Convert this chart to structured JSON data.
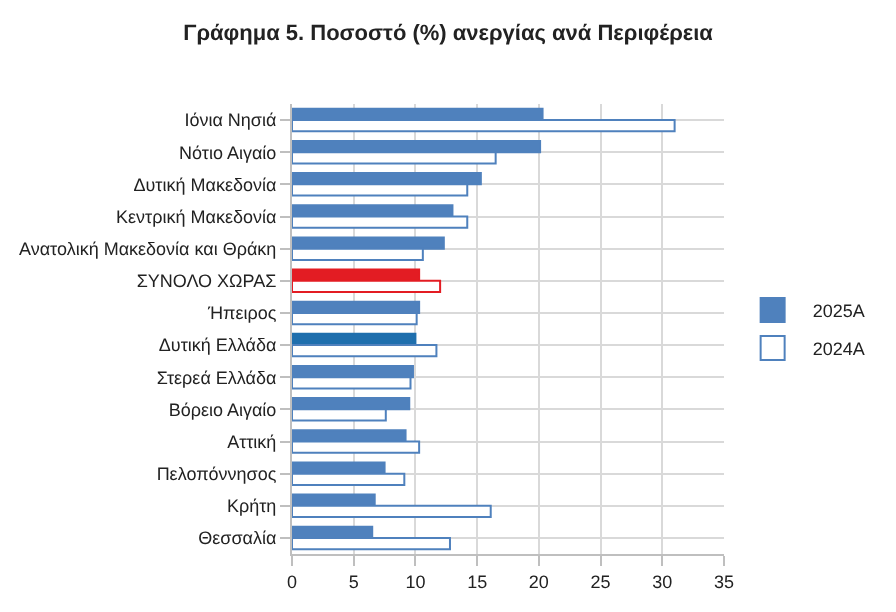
{
  "chart_data": {
    "type": "bar",
    "orientation": "horizontal",
    "title": "Γράφημα 5. Ποσοστό (%) ανεργίας ανά Περιφέρεια",
    "categories": [
      "Ιόνια Νησιά",
      "Νότιο Αιγαίο",
      "Δυτική Μακεδονία",
      "Κεντρική Μακεδονία",
      "Ανατολική Μακεδονία και Θράκη",
      "ΣΥΝΟΛΟ ΧΩΡΑΣ",
      "Ήπειρος",
      "Δυτική Ελλάδα",
      "Στερεά Ελλάδα",
      "Βόρειο Αιγαίο",
      "Αττική",
      "Πελοπόννησος",
      "Κρήτη",
      "Θεσσαλία"
    ],
    "series": [
      {
        "name": "2025A",
        "color": "#4f81bd",
        "colors": [
          "#4f81bd",
          "#4f81bd",
          "#4f81bd",
          "#4f81bd",
          "#4f81bd",
          "#e31c23",
          "#4f81bd",
          "#1f6fad",
          "#4f81bd",
          "#4f81bd",
          "#4f81bd",
          "#4f81bd",
          "#4f81bd",
          "#4f81bd"
        ],
        "values": [
          20.3,
          20.1,
          15.3,
          13.0,
          12.3,
          10.3,
          10.3,
          10.0,
          9.8,
          9.5,
          9.2,
          7.5,
          6.7,
          6.5
        ]
      },
      {
        "name": "2024A",
        "color": "#ffffff",
        "colors": [
          "#4f81bd",
          "#4f81bd",
          "#4f81bd",
          "#4f81bd",
          "#4f81bd",
          "#e31c23",
          "#4f81bd",
          "#4f81bd",
          "#4f81bd",
          "#4f81bd",
          "#4f81bd",
          "#4f81bd",
          "#4f81bd",
          "#4f81bd"
        ],
        "values": [
          31.0,
          16.5,
          14.2,
          14.2,
          10.6,
          12.0,
          10.1,
          11.7,
          9.6,
          7.6,
          10.3,
          9.1,
          16.1,
          12.8
        ]
      }
    ],
    "xlim": [
      0,
      35
    ],
    "xticks": [
      0,
      5,
      10,
      15,
      20,
      25,
      30,
      35
    ],
    "grid": true,
    "legend": "right"
  }
}
